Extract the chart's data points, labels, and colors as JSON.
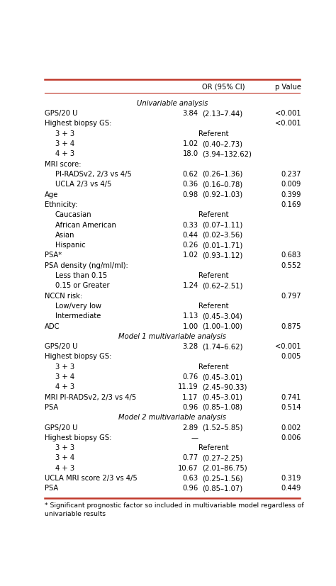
{
  "header_col2": "OR (95% CI)",
  "header_col3": "p Value",
  "footnote1": "* Significant prognostic factor so included in multivariable model regardless of",
  "footnote2": "univariable results",
  "rows": [
    {
      "text": "Univariable analysis",
      "or_val": "",
      "or_ci": "",
      "p": "",
      "style": "section_italic",
      "indent": 0
    },
    {
      "text": "GPS/20 U",
      "or_val": "3.84",
      "or_ci": "(2.13–7.44)",
      "p": "<0.001",
      "style": "normal",
      "indent": 0
    },
    {
      "text": "Highest biopsy GS:",
      "or_val": "",
      "or_ci": "",
      "p": "<0.001",
      "style": "normal",
      "indent": 0
    },
    {
      "text": "3 + 3",
      "or_val": "Referent",
      "or_ci": "",
      "p": "",
      "style": "normal",
      "indent": 1
    },
    {
      "text": "3 + 4",
      "or_val": "1.02",
      "or_ci": "(0.40–2.73)",
      "p": "",
      "style": "normal",
      "indent": 1
    },
    {
      "text": "4 + 3",
      "or_val": "18.0",
      "or_ci": "(3.94–132.62)",
      "p": "",
      "style": "normal",
      "indent": 1
    },
    {
      "text": "MRI score:",
      "or_val": "",
      "or_ci": "",
      "p": "",
      "style": "normal",
      "indent": 0
    },
    {
      "text": "PI-RADSv2, 2/3 vs 4/5",
      "or_val": "0.62",
      "or_ci": "(0.26–1.36)",
      "p": "0.237",
      "style": "normal",
      "indent": 1
    },
    {
      "text": "UCLA 2/3 vs 4/5",
      "or_val": "0.36",
      "or_ci": "(0.16–0.78)",
      "p": "0.009",
      "style": "normal",
      "indent": 1
    },
    {
      "text": "Age",
      "or_val": "0.98",
      "or_ci": "(0.92–1.03)",
      "p": "0.399",
      "style": "normal",
      "indent": 0
    },
    {
      "text": "Ethnicity:",
      "or_val": "",
      "or_ci": "",
      "p": "0.169",
      "style": "normal",
      "indent": 0
    },
    {
      "text": "Caucasian",
      "or_val": "Referent",
      "or_ci": "",
      "p": "",
      "style": "normal",
      "indent": 1
    },
    {
      "text": "African American",
      "or_val": "0.33",
      "or_ci": "(0.07–1.11)",
      "p": "",
      "style": "normal",
      "indent": 1
    },
    {
      "text": "Asian",
      "or_val": "0.44",
      "or_ci": "(0.02–3.56)",
      "p": "",
      "style": "normal",
      "indent": 1
    },
    {
      "text": "Hispanic",
      "or_val": "0.26",
      "or_ci": "(0.01–1.71)",
      "p": "",
      "style": "normal",
      "indent": 1
    },
    {
      "text": "PSA*",
      "or_val": "1.02",
      "or_ci": "(0.93–1.12)",
      "p": "0.683",
      "style": "normal",
      "indent": 0
    },
    {
      "text": "PSA density (ng/ml/ml):",
      "or_val": "",
      "or_ci": "",
      "p": "0.552",
      "style": "normal",
      "indent": 0
    },
    {
      "text": "Less than 0.15",
      "or_val": "Referent",
      "or_ci": "",
      "p": "",
      "style": "normal",
      "indent": 1
    },
    {
      "text": "0.15 or Greater",
      "or_val": "1.24",
      "or_ci": "(0.62–2.51)",
      "p": "",
      "style": "normal",
      "indent": 1
    },
    {
      "text": "NCCN risk:",
      "or_val": "",
      "or_ci": "",
      "p": "0.797",
      "style": "normal",
      "indent": 0
    },
    {
      "text": "Low/very low",
      "or_val": "Referent",
      "or_ci": "",
      "p": "",
      "style": "normal",
      "indent": 1
    },
    {
      "text": "Intermediate",
      "or_val": "1.13",
      "or_ci": "(0.45–3.04)",
      "p": "",
      "style": "normal",
      "indent": 1
    },
    {
      "text": "ADC",
      "or_val": "1.00",
      "or_ci": "(1.00–1.00)",
      "p": "0.875",
      "style": "normal",
      "indent": 0
    },
    {
      "text": "Model 1 multivariable analysis",
      "or_val": "",
      "or_ci": "",
      "p": "",
      "style": "section_italic",
      "indent": 0
    },
    {
      "text": "GPS/20 U",
      "or_val": "3.28",
      "or_ci": "(1.74–6.62)",
      "p": "<0.001",
      "style": "normal",
      "indent": 0
    },
    {
      "text": "Highest biopsy GS:",
      "or_val": "",
      "or_ci": "",
      "p": "0.005",
      "style": "normal",
      "indent": 0
    },
    {
      "text": "3 + 3",
      "or_val": "Referent",
      "or_ci": "",
      "p": "",
      "style": "normal",
      "indent": 1
    },
    {
      "text": "3 + 4",
      "or_val": "0.76",
      "or_ci": "(0.45–3.01)",
      "p": "",
      "style": "normal",
      "indent": 1
    },
    {
      "text": "4 + 3",
      "or_val": "11.19",
      "or_ci": "(2.45–90.33)",
      "p": "",
      "style": "normal",
      "indent": 1
    },
    {
      "text": "MRI PI-RADSv2, 2/3 vs 4/5",
      "or_val": "1.17",
      "or_ci": "(0.45–3.01)",
      "p": "0.741",
      "style": "normal",
      "indent": 0
    },
    {
      "text": "PSA",
      "or_val": "0.96",
      "or_ci": "(0.85–1.08)",
      "p": "0.514",
      "style": "normal",
      "indent": 0
    },
    {
      "text": "Model 2 multivariable analysis",
      "or_val": "",
      "or_ci": "",
      "p": "",
      "style": "section_italic",
      "indent": 0
    },
    {
      "text": "GPS/20 U",
      "or_val": "2.89",
      "or_ci": "(1.52–5.85)",
      "p": "0.002",
      "style": "normal",
      "indent": 0
    },
    {
      "text": "Highest biopsy GS:",
      "or_val": "—",
      "or_ci": "",
      "p": "0.006",
      "style": "normal",
      "indent": 0
    },
    {
      "text": "3 + 3",
      "or_val": "Referent",
      "or_ci": "",
      "p": "",
      "style": "normal",
      "indent": 1
    },
    {
      "text": "3 + 4",
      "or_val": "0.77",
      "or_ci": "(0.27–2.25)",
      "p": "",
      "style": "normal",
      "indent": 1
    },
    {
      "text": "4 + 3",
      "or_val": "10.67",
      "or_ci": "(2.01–86.75)",
      "p": "",
      "style": "normal",
      "indent": 1
    },
    {
      "text": "UCLA MRI score 2/3 vs 4/5",
      "or_val": "0.63",
      "or_ci": "(0.25–1.56)",
      "p": "0.319",
      "style": "normal",
      "indent": 0
    },
    {
      "text": "PSA",
      "or_val": "0.96",
      "or_ci": "(0.85–1.07)",
      "p": "0.449",
      "style": "normal",
      "indent": 0
    }
  ],
  "line_color": "#c0392b",
  "fontsize": 7.2
}
